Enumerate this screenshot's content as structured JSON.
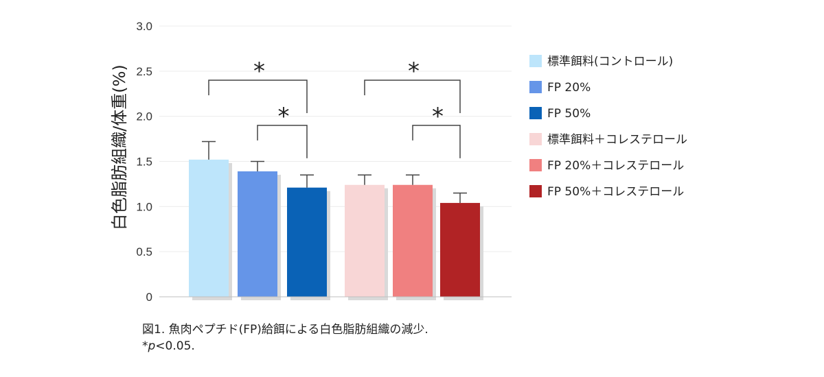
{
  "chart_data": {
    "type": "bar",
    "ylabel": "白色脂肪組織/体重(%)",
    "ylim": [
      0,
      3.0
    ],
    "yticks": [
      {
        "value": 0,
        "label": "0"
      },
      {
        "value": 0.5,
        "label": "0.5"
      },
      {
        "value": 1.0,
        "label": "1.0"
      },
      {
        "value": 1.5,
        "label": "1.5"
      },
      {
        "value": 2.0,
        "label": "2.0"
      },
      {
        "value": 2.5,
        "label": "2.5"
      },
      {
        "value": 3.0,
        "label": "3.0"
      }
    ],
    "grid": true,
    "legend_position": "right",
    "series": [
      {
        "name": "標準餌料(コントロール)",
        "value": 1.52,
        "error": 0.2,
        "color": "#bde5fb"
      },
      {
        "name": "FP 20%",
        "value": 1.39,
        "error": 0.11,
        "color": "#6595e8"
      },
      {
        "name": "FP 50%",
        "value": 1.21,
        "error": 0.14,
        "color": "#0a62b6"
      },
      {
        "name": "標準餌料＋コレステロール",
        "value": 1.24,
        "error": 0.11,
        "color": "#f8d6d6"
      },
      {
        "name": "FP 20%＋コレステロール",
        "value": 1.24,
        "error": 0.11,
        "color": "#f08080"
      },
      {
        "name": "FP 50%＋コレステロール",
        "value": 1.04,
        "error": 0.11,
        "color": "#b12325"
      }
    ],
    "significance": [
      {
        "from": 0,
        "to": 2,
        "y": 2.4,
        "label": "*"
      },
      {
        "from": 1,
        "to": 2,
        "y": 1.9,
        "label": "*"
      },
      {
        "from": 3,
        "to": 5,
        "y": 2.4,
        "label": "*"
      },
      {
        "from": 4,
        "to": 5,
        "y": 1.9,
        "label": "*"
      }
    ]
  },
  "caption": {
    "line1": "図1. 魚肉ペプチド(FP)給餌による白色脂肪組織の減少.",
    "line2_prefix": "*",
    "line2_p": "p",
    "line2_suffix": "<0.05."
  }
}
